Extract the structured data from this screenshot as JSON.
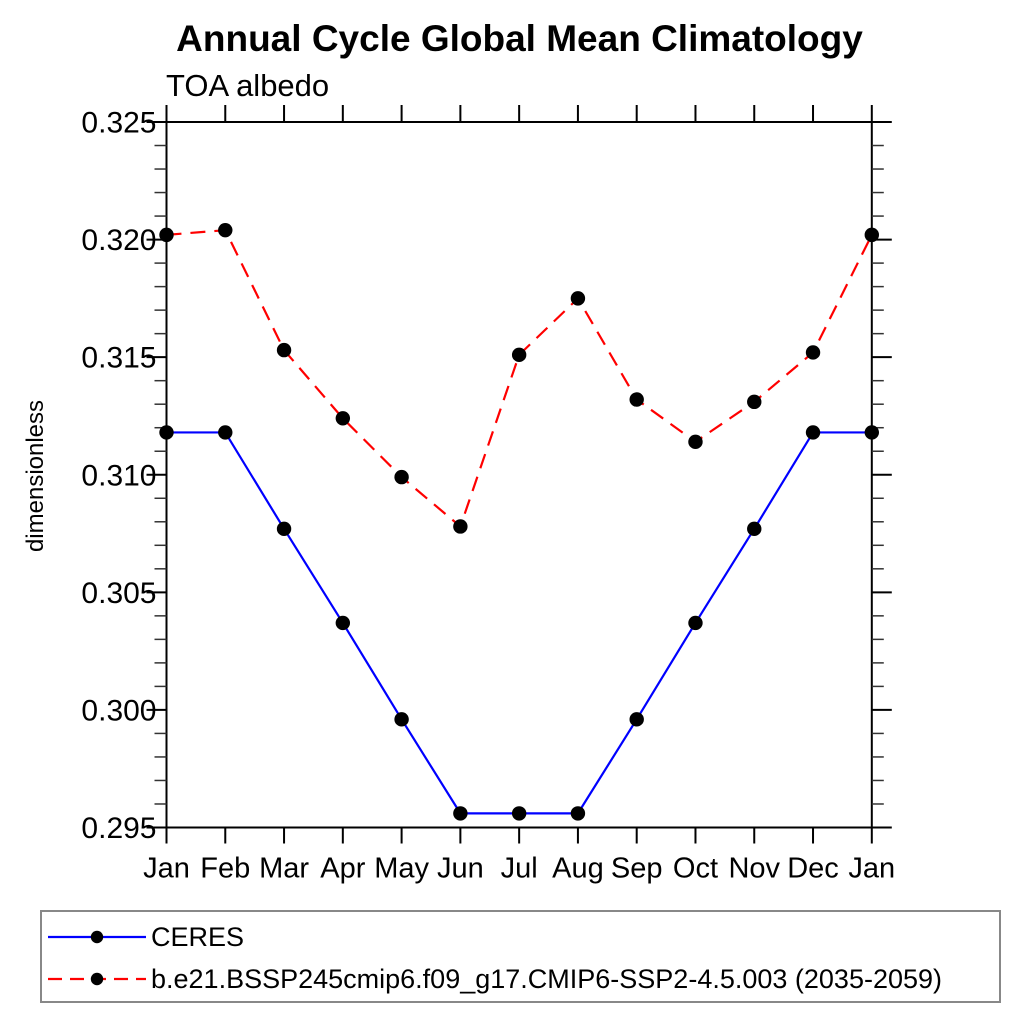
{
  "chart_data": {
    "type": "line",
    "title": "Annual Cycle Global Mean Climatology",
    "left_subtitle": "TOA albedo",
    "ylabel": "dimensionless",
    "xlabel": "",
    "categories": [
      "Jan",
      "Feb",
      "Mar",
      "Apr",
      "May",
      "Jun",
      "Jul",
      "Aug",
      "Sep",
      "Oct",
      "Nov",
      "Dec",
      "Jan"
    ],
    "series": [
      {
        "name": "CERES",
        "color": "#0000ff",
        "line_style": "solid",
        "marker": "circle",
        "marker_color": "#000000",
        "values": [
          0.3118,
          0.3118,
          0.3077,
          0.3037,
          0.2996,
          0.2956,
          0.2956,
          0.2956,
          0.2996,
          0.3037,
          0.3077,
          0.3118,
          0.3118
        ]
      },
      {
        "name": "b.e21.BSSP245cmip6.f09_g17.CMIP6-SSP2-4.5.003 (2035-2059)",
        "color": "#ff0000",
        "line_style": "dashed",
        "marker": "circle",
        "marker_color": "#000000",
        "values": [
          0.3202,
          0.3204,
          0.3153,
          0.3124,
          0.3099,
          0.3078,
          0.3151,
          0.3175,
          0.3132,
          0.3114,
          0.3131,
          0.3152,
          0.3202
        ]
      }
    ],
    "ylim": [
      0.295,
      0.325
    ],
    "ytick_labels": [
      "0.295",
      "0.300",
      "0.305",
      "0.310",
      "0.315",
      "0.320",
      "0.325"
    ],
    "y_minor_step": 0.001,
    "grid": false,
    "legend_position": "bottom"
  }
}
